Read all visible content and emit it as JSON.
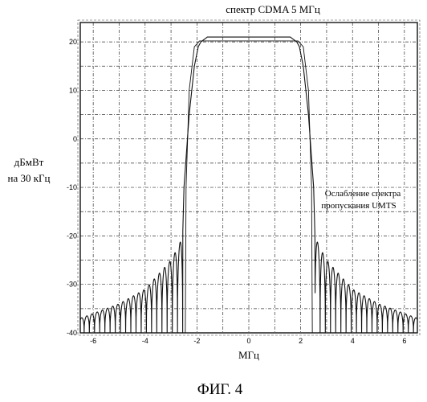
{
  "chart_data": {
    "type": "line",
    "title": "спектр CDMA 5 МГц",
    "xlabel": "МГц",
    "ylabel_line1": "дБмВт",
    "ylabel_line2": "на 30 кГц",
    "xlim": [
      -6.5,
      6.5
    ],
    "ylim": [
      -40,
      24
    ],
    "grid": true,
    "xticks": [
      -6,
      -4,
      -2,
      0,
      2,
      4,
      6
    ],
    "yticks": [
      20,
      10,
      0,
      -10,
      -20,
      -30,
      -40
    ],
    "annotation_line1": "Ослабление спектра",
    "annotation_line2": "пропускания UMTS",
    "figure_label": "ФИГ. 4",
    "series": [
      {
        "x": [
          -6.5,
          -6.0,
          -5.0,
          -4.0,
          -3.5,
          -3.0,
          -2.7,
          -2.55,
          -2.5,
          -2.3,
          -2.1,
          -1.95,
          -1.85,
          -1.6,
          -1.2,
          0,
          1.2,
          1.6,
          1.85,
          1.95,
          2.1,
          2.3,
          2.5,
          2.55,
          2.7,
          3.0,
          3.5,
          4.0,
          5.0,
          6.0,
          6.5
        ],
        "y": [
          -37,
          -36,
          -34,
          -31,
          -28,
          -25,
          -22,
          -20,
          -10,
          5,
          15,
          19,
          20,
          21,
          21,
          21,
          21,
          21,
          20,
          19,
          15,
          5,
          -10,
          -20,
          -22,
          -25,
          -28,
          -31,
          -34,
          -36,
          -37
        ]
      }
    ]
  }
}
